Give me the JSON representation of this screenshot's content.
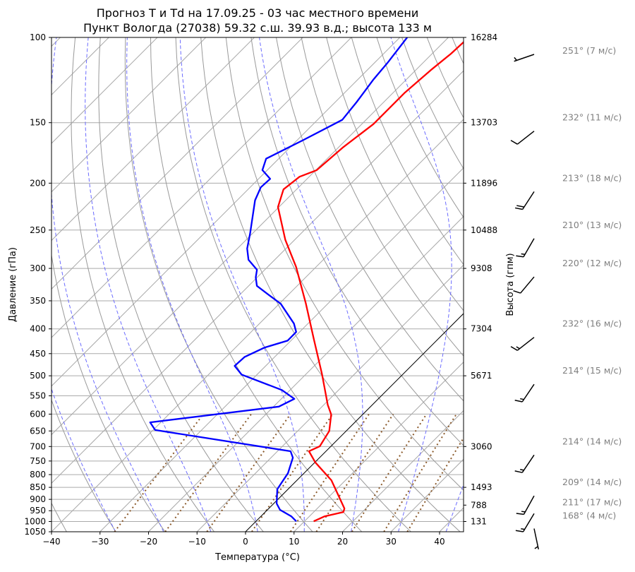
{
  "chart_data": {
    "type": "line",
    "subtype": "skew-t log-p",
    "title": [
      "Прогноз T и Td на 17.09.25 - 03 час местного времени",
      "Пункт Вологда (27038) 59.32 с.ш. 39.93 в.д.; высота 133 м"
    ],
    "xlabel": "Температура (°C)",
    "ylabel": "Давление (гПа)",
    "ylabel_right": "Высота (гпм)",
    "xlim": [
      -40,
      45
    ],
    "ylim": [
      1050,
      100
    ],
    "x_ticks": [
      -40,
      -30,
      -20,
      -10,
      0,
      10,
      20,
      30,
      40
    ],
    "y_ticks": [
      100,
      150,
      200,
      250,
      300,
      350,
      400,
      450,
      500,
      550,
      600,
      650,
      700,
      750,
      800,
      850,
      900,
      950,
      1000,
      1050
    ],
    "height_ticks": [
      {
        "p": 100,
        "label": "16284"
      },
      {
        "p": 150,
        "label": "13703"
      },
      {
        "p": 200,
        "label": "11896"
      },
      {
        "p": 250,
        "label": "10488"
      },
      {
        "p": 300,
        "label": "9308"
      },
      {
        "p": 400,
        "label": "7304"
      },
      {
        "p": 500,
        "label": "5671"
      },
      {
        "p": 700,
        "label": "3060"
      },
      {
        "p": 850,
        "label": "1493"
      },
      {
        "p": 925,
        "label": "788"
      },
      {
        "p": 1000,
        "label": "131"
      }
    ],
    "series": [
      {
        "name": "T",
        "color": "#ff0000",
        "points": [
          [
            999,
            11.9
          ],
          [
            976,
            13.1
          ],
          [
            956,
            16.1
          ],
          [
            940,
            15.6
          ],
          [
            822,
            7.1
          ],
          [
            755,
            0.1
          ],
          [
            716,
            -3.5
          ],
          [
            699,
            -2.3
          ],
          [
            650,
            -3.5
          ],
          [
            601,
            -6.5
          ],
          [
            574,
            -9.2
          ],
          [
            497,
            -16.6
          ],
          [
            420,
            -25.6
          ],
          [
            355,
            -34.5
          ],
          [
            298,
            -44.1
          ],
          [
            262,
            -51.9
          ],
          [
            224,
            -60.2
          ],
          [
            206,
            -62.7
          ],
          [
            194,
            -62.0
          ],
          [
            188,
            -59.8
          ],
          [
            169,
            -59.1
          ],
          [
            151,
            -57.6
          ],
          [
            130,
            -57.6
          ],
          [
            117,
            -56.9
          ],
          [
            108,
            -56.1
          ],
          [
            102,
            -55.9
          ],
          [
            100,
            -55.7
          ]
        ]
      },
      {
        "name": "Td",
        "color": "#0000ff",
        "points": [
          [
            999,
            8.3
          ],
          [
            976,
            6.3
          ],
          [
            946,
            2.6
          ],
          [
            918,
            0.6
          ],
          [
            858,
            -2.2
          ],
          [
            841,
            -2.5
          ],
          [
            795,
            -3.3
          ],
          [
            738,
            -5.5
          ],
          [
            716,
            -7.3
          ],
          [
            647,
            -39.6
          ],
          [
            624,
            -42.2
          ],
          [
            579,
            -18.9
          ],
          [
            558,
            -17.3
          ],
          [
            535,
            -21.7
          ],
          [
            497,
            -33.2
          ],
          [
            477,
            -36.4
          ],
          [
            457,
            -36.2
          ],
          [
            437,
            -34.0
          ],
          [
            423,
            -30.7
          ],
          [
            406,
            -30.7
          ],
          [
            390,
            -32.9
          ],
          [
            355,
            -39.7
          ],
          [
            341,
            -43.8
          ],
          [
            326,
            -48.3
          ],
          [
            313,
            -50.3
          ],
          [
            302,
            -51.6
          ],
          [
            288,
            -55.4
          ],
          [
            273,
            -58.0
          ],
          [
            254,
            -60.5
          ],
          [
            217,
            -66.3
          ],
          [
            204,
            -67.8
          ],
          [
            196,
            -67.6
          ],
          [
            188,
            -71.0
          ],
          [
            178,
            -72.6
          ],
          [
            163,
            -68.8
          ],
          [
            148,
            -64.9
          ],
          [
            136,
            -65.6
          ],
          [
            122,
            -66.8
          ],
          [
            113,
            -67.3
          ],
          [
            100,
            -68.5
          ]
        ]
      }
    ],
    "highlight_isotherm": 0,
    "wind": [
      {
        "p": 100,
        "dir": 251,
        "speed": 7,
        "label": "251° (7 м/с)"
      },
      {
        "p": 150,
        "dir": 232,
        "speed": 11,
        "label": "232° (11 м/с)"
      },
      {
        "p": 200,
        "dir": 213,
        "speed": 18,
        "label": "213° (18 м/с)"
      },
      {
        "p": 250,
        "dir": 210,
        "speed": 13,
        "label": "210° (13 м/с)"
      },
      {
        "p": 300,
        "dir": 220,
        "speed": 12,
        "label": "220° (12 м/с)"
      },
      {
        "p": 400,
        "dir": 232,
        "speed": 16,
        "label": "232° (16 м/с)"
      },
      {
        "p": 500,
        "dir": 214,
        "speed": 15,
        "label": "214° (15 м/с)"
      },
      {
        "p": 700,
        "dir": 214,
        "speed": 14,
        "label": "214° (14 м/с)"
      },
      {
        "p": 850,
        "dir": 209,
        "speed": 14,
        "label": "209° (14 м/с)"
      },
      {
        "p": 925,
        "dir": 211,
        "speed": 17,
        "label": "211° (17 м/с)"
      },
      {
        "p": 1000,
        "dir": 168,
        "speed": 4,
        "label": "168° (4 м/с)"
      }
    ],
    "grid": true
  }
}
